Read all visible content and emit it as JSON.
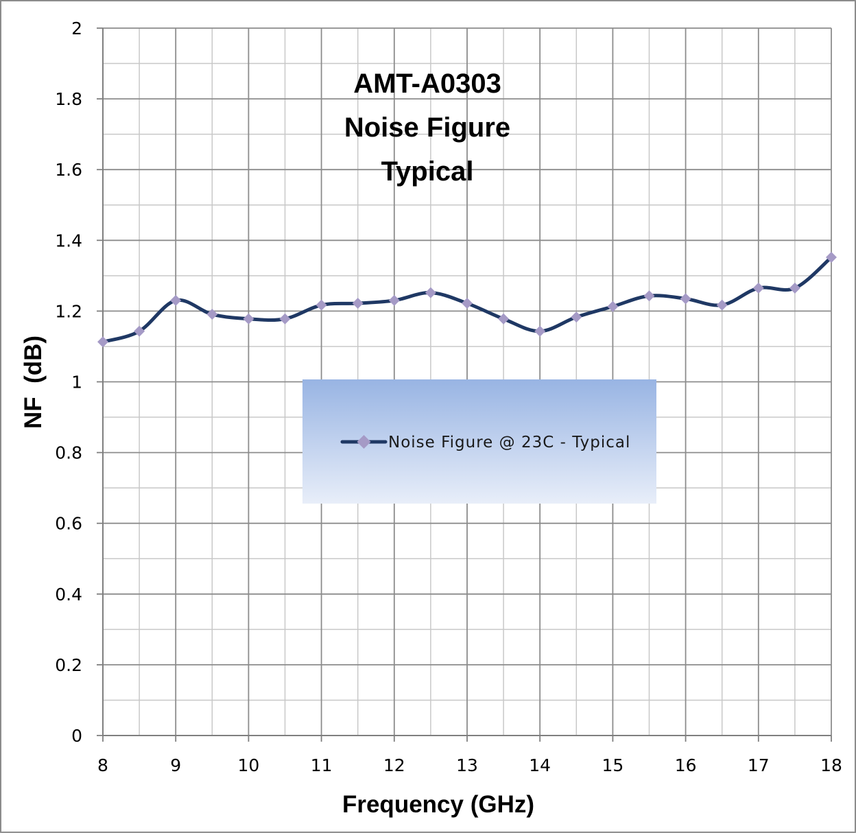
{
  "chart_data": {
    "type": "line",
    "title": [
      "AMT-A0303",
      "Noise Figure",
      "Typical"
    ],
    "xlabel": "Frequency (GHz)",
    "ylabel": "NF  (dB)",
    "xlim": [
      8,
      18
    ],
    "ylim": [
      0,
      2
    ],
    "x_ticks": [
      "8",
      "9",
      "10",
      "11",
      "12",
      "13",
      "14",
      "15",
      "16",
      "17",
      "18"
    ],
    "y_ticks": [
      "0",
      "0.2",
      "0.4",
      "0.6",
      "0.8",
      "1",
      "1.2",
      "1.4",
      "1.6",
      "1.8",
      "2"
    ],
    "grid": true,
    "legend": "center",
    "series": [
      {
        "name": "Noise Figure @ 23C - Typical",
        "color": "#1f3864",
        "marker_color": "#a59ac6",
        "x": [
          8,
          8.5,
          9,
          9.5,
          10,
          10.5,
          11,
          11.5,
          12,
          12.5,
          13,
          13.5,
          14,
          14.5,
          15,
          15.5,
          16,
          16.5,
          17,
          17.5,
          18
        ],
        "y": [
          1.113,
          1.143,
          1.23,
          1.191,
          1.178,
          1.178,
          1.217,
          1.222,
          1.23,
          1.252,
          1.222,
          1.178,
          1.143,
          1.183,
          1.213,
          1.243,
          1.235,
          1.217,
          1.265,
          1.265,
          1.352
        ]
      }
    ]
  }
}
